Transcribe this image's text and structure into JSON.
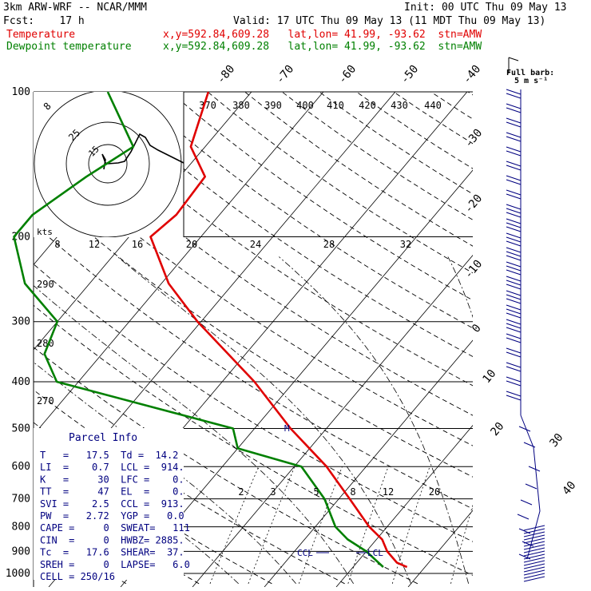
{
  "header": {
    "model": "3km ARW-WRF -- NCAR/MMM",
    "init": "Init: 00 UTC Thu 09 May 13",
    "fcst": "Fcst:    17 h",
    "valid": "Valid: 17 UTC Thu 09 May 13 (11 MDT Thu 09 May 13)",
    "temp_label": "Temperature",
    "temp_info": "x,y=592.84,609.28   lat,lon= 41.99, -93.62  stn=AMW",
    "dew_label": "Dewpoint temperature",
    "dew_info": "x,y=592.84,609.28   lat,lon= 41.99, -93.62  stn=AMW",
    "colors": {
      "temperature": "#e00000",
      "dewpoint": "#008000",
      "parcel_text": "#000080"
    }
  },
  "chart_data": {
    "type": "line",
    "diagram": "skew-T log-P",
    "pressure_levels": [
      "100",
      "200",
      "300",
      "400",
      "500",
      "600",
      "700",
      "800",
      "900",
      "1000"
    ],
    "isotherm_labels": [
      "-80",
      "-70",
      "-60",
      "-50",
      "-40",
      "-30",
      "-20",
      "-10",
      "0",
      "10",
      "20",
      "30",
      "40"
    ],
    "theta_labels": [
      "370",
      "380",
      "390",
      "400",
      "410",
      "420",
      "430",
      "440"
    ],
    "left_theta_labels": [
      "290",
      "280",
      "270"
    ],
    "mixing_ratio_labels": [
      "2",
      "3",
      "5",
      "8",
      "12",
      "20"
    ],
    "hodograph": {
      "units": "kts",
      "ring_labels": [
        "25",
        "15"
      ],
      "ring_label_top": "8",
      "speed_labels": [
        "8",
        "12",
        "16",
        "20",
        "24",
        "28",
        "32"
      ]
    },
    "series": [
      {
        "name": "Temperature",
        "color": "#e00000",
        "points": [
          {
            "p": 970,
            "t": 17.5
          },
          {
            "p": 950,
            "t": 15.6
          },
          {
            "p": 900,
            "t": 12.9
          },
          {
            "p": 850,
            "t": 10.8
          },
          {
            "p": 800,
            "t": 7.5
          },
          {
            "p": 700,
            "t": 1.5
          },
          {
            "p": 600,
            "t": -5.5
          },
          {
            "p": 500,
            "t": -15
          },
          {
            "p": 400,
            "t": -25.5
          },
          {
            "p": 300,
            "t": -40.5
          },
          {
            "p": 250,
            "t": -49
          },
          {
            "p": 200,
            "t": -57
          },
          {
            "p": 180,
            "t": -56
          },
          {
            "p": 150,
            "t": -56.5
          },
          {
            "p": 130,
            "t": -62
          },
          {
            "p": 100,
            "t": -66
          }
        ]
      },
      {
        "name": "Dewpoint temperature",
        "color": "#008000",
        "points": [
          {
            "p": 970,
            "t": 14.2
          },
          {
            "p": 900,
            "t": 10
          },
          {
            "p": 850,
            "t": 6
          },
          {
            "p": 800,
            "t": 2.8
          },
          {
            "p": 700,
            "t": -2
          },
          {
            "p": 600,
            "t": -9
          },
          {
            "p": 550,
            "t": -20
          },
          {
            "p": 500,
            "t": -23
          },
          {
            "p": 400,
            "t": -53
          },
          {
            "p": 350,
            "t": -58
          },
          {
            "p": 300,
            "t": -60
          },
          {
            "p": 250,
            "t": -69
          },
          {
            "p": 200,
            "t": -76
          },
          {
            "p": 180,
            "t": -76
          },
          {
            "p": 150,
            "t": -73
          },
          {
            "p": 130,
            "t": -70
          },
          {
            "p": 100,
            "t": -80
          }
        ]
      }
    ],
    "annotations": {
      "lcl": "LCL",
      "ccl": "CCL",
      "el_marker": "M",
      "wind_legend_line1": "Full barb:",
      "wind_legend_line2": "5 m s⁻¹"
    }
  },
  "parcel_info": {
    "title": "Parcel Info",
    "rows": [
      "T   =   17.5  Td =  14.2",
      "LI  =    0.7  LCL =  914.",
      "K   =     30  LFC =    0.",
      "TT  =     47  EL  =    0.",
      "SVI =    2.5  CCL =  913.",
      "PW  =   2.72  YGP =   0.0",
      "CAPE =     0  SWEAT=   111",
      "CIN  =     0  HWBZ= 2885.",
      "Tc  =   17.6  SHEAR=  37.",
      "SREH =     0  LAPSE=   6.0",
      "CELL = 250/16"
    ]
  }
}
